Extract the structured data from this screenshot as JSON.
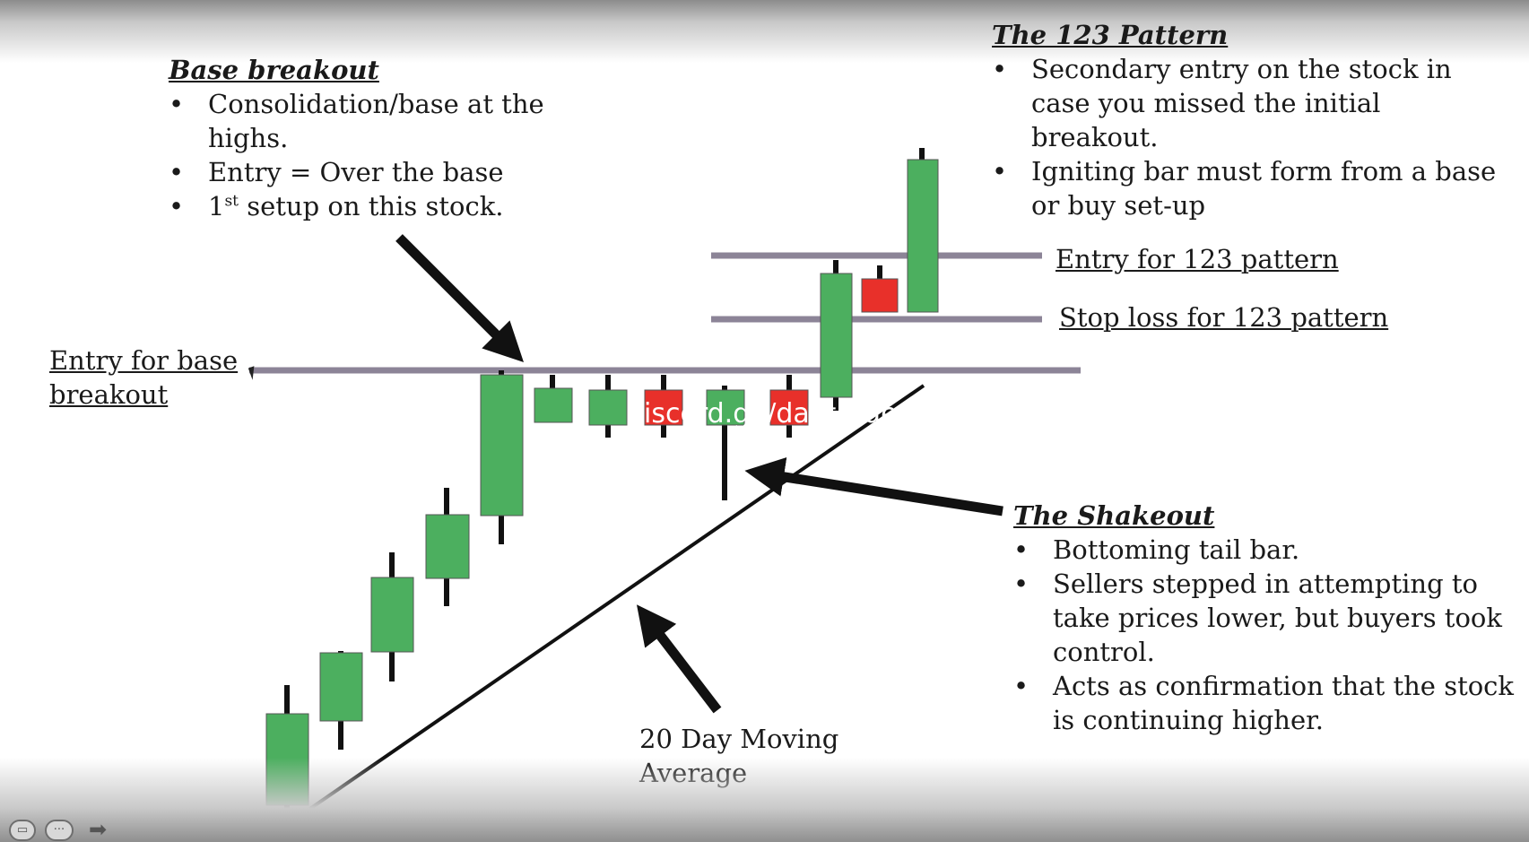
{
  "base_breakout": {
    "title": "Base breakout",
    "bullets": [
      "Consolidation/base at the highs.",
      "Entry = Over the base"
    ],
    "bullet3_prefix": "1",
    "bullet3_sup": "st",
    "bullet3_rest": " setup on this stock."
  },
  "pattern_123": {
    "title": "The 123 Pattern",
    "bullets": [
      "Secondary entry on the stock in case you missed the initial breakout.",
      "Igniting bar must form from a base or buy set-up"
    ]
  },
  "shakeout": {
    "title": "The Shakeout",
    "bullets": [
      "Bottoming tail bar.",
      "Sellers stepped in attempting to take prices lower, but buyers took control.",
      "Acts as confirmation that the stock is continuing higher."
    ]
  },
  "labels": {
    "entry_base": [
      "Entry for base",
      "breakout"
    ],
    "entry_123": "Entry for 123 pattern",
    "stop_123": "Stop loss for 123 pattern",
    "moving_avg": [
      "20 Day Moving",
      "Average"
    ]
  },
  "watermark": "iscord.gg/daytrade",
  "colors": {
    "bull": "#4caf5f",
    "bear": "#e8302a",
    "line": "#8c8497",
    "ink": "#111111"
  },
  "icons": [
    "subtitle-icon",
    "more-options-icon",
    "next-arrow-icon"
  ]
}
